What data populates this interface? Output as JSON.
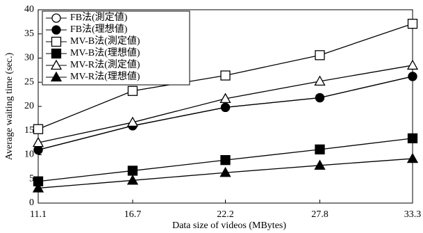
{
  "chart_data": {
    "type": "line",
    "x_label": "Data size of videos (MBytes)",
    "y_label": "Average waiting time (sec.)",
    "x": [
      11.1,
      16.7,
      22.2,
      27.8,
      33.3
    ],
    "xlim": [
      11.1,
      33.3
    ],
    "xticks": [
      11.1,
      16.7,
      22.2,
      27.8,
      33.3
    ],
    "ylim": [
      0,
      40
    ],
    "yticks": [
      0,
      5,
      10,
      15,
      20,
      25,
      30,
      35,
      40
    ],
    "legend": "upper-left",
    "series": [
      {
        "name": "FB法(測定値)",
        "color": "#000000",
        "marker": "circle",
        "filled": false,
        "values": [
          11.0,
          16.0,
          19.8,
          21.8,
          26.2
        ]
      },
      {
        "name": "FB法(理想値)",
        "color": "#000000",
        "marker": "circle",
        "filled": true,
        "values": [
          11.0,
          16.0,
          19.8,
          21.8,
          26.2
        ]
      },
      {
        "name": "MV-B法(測定値)",
        "color": "#000000",
        "marker": "square",
        "filled": false,
        "values": [
          15.3,
          23.2,
          26.4,
          30.6,
          37.1
        ]
      },
      {
        "name": "MV-B法(理想値)",
        "color": "#000000",
        "marker": "square",
        "filled": true,
        "values": [
          4.5,
          6.7,
          8.9,
          11.1,
          13.4
        ]
      },
      {
        "name": "MV-R法(測定値)",
        "color": "#000000",
        "marker": "triangle",
        "filled": false,
        "values": [
          12.5,
          16.7,
          21.6,
          25.2,
          28.5
        ]
      },
      {
        "name": "MV-R法(理想値)",
        "color": "#000000",
        "marker": "triangle",
        "filled": true,
        "values": [
          3.1,
          4.7,
          6.3,
          7.8,
          9.2
        ]
      }
    ]
  }
}
